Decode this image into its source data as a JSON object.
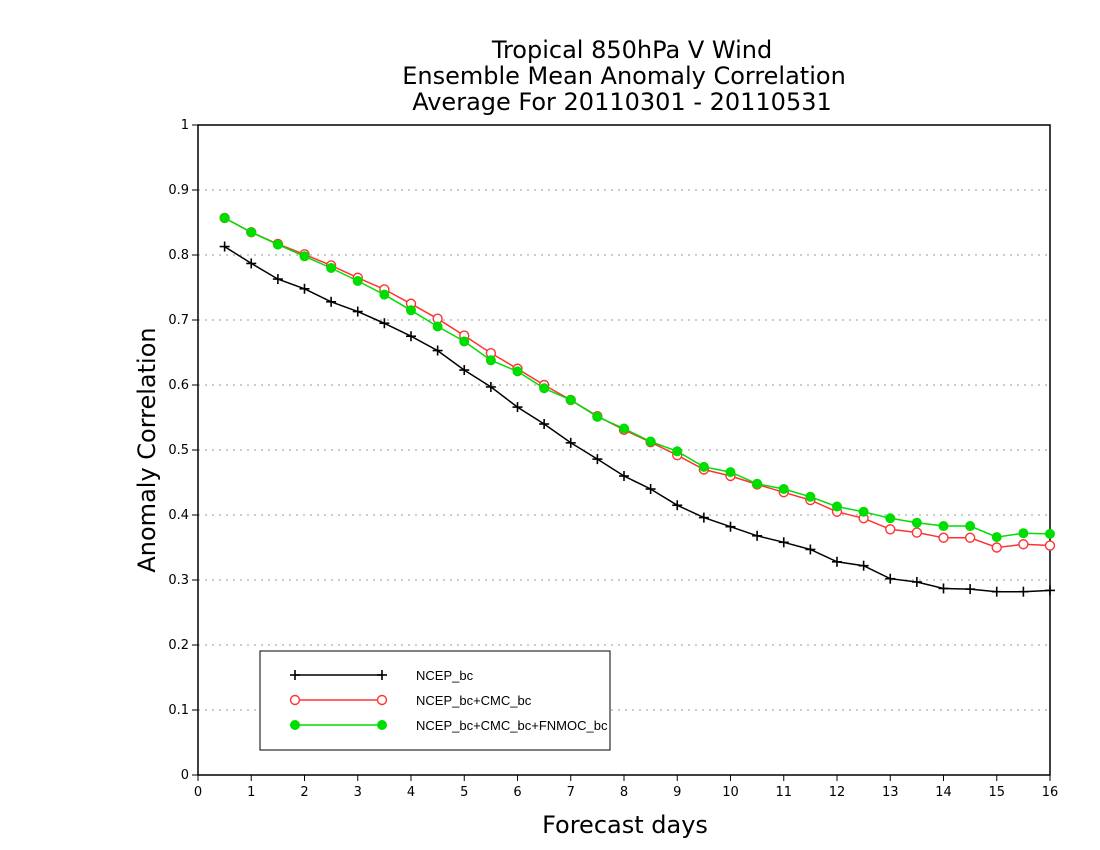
{
  "chart_data": {
    "type": "line",
    "title": [
      "Tropical 850hPa V Wind",
      "Ensemble Mean Anomaly Correlation",
      "Average For 20110301 - 20110531"
    ],
    "xlabel": "Forecast days",
    "ylabel": "Anomaly Correlation",
    "xlim": [
      0,
      16
    ],
    "ylim": [
      0,
      1
    ],
    "xticks": [
      0,
      1,
      2,
      3,
      4,
      5,
      6,
      7,
      8,
      9,
      10,
      11,
      12,
      13,
      14,
      15,
      16
    ],
    "yticks": [
      0,
      0.1,
      0.2,
      0.3,
      0.4,
      0.5,
      0.6,
      0.7,
      0.8,
      0.9,
      1
    ],
    "ytick_labels": [
      "0",
      "0.1",
      "0.2",
      "0.3",
      "0.4",
      "0.5",
      "0.6",
      "0.7",
      "0.8",
      "0.9",
      "1"
    ],
    "grid": true,
    "legend_position": "bottom-left",
    "x": [
      0.5,
      1,
      1.5,
      2,
      2.5,
      3,
      3.5,
      4,
      4.5,
      5,
      5.5,
      6,
      6.5,
      7,
      7.5,
      8,
      8.5,
      9,
      9.5,
      10,
      10.5,
      11,
      11.5,
      12,
      12.5,
      13,
      13.5,
      14,
      14.5,
      15,
      15.5,
      16
    ],
    "series": [
      {
        "name": "NCEP_bc",
        "color": "#000000",
        "marker": "plus",
        "values": [
          0.813,
          0.787,
          0.763,
          0.748,
          0.728,
          0.713,
          0.695,
          0.675,
          0.653,
          0.623,
          0.597,
          0.566,
          0.54,
          0.511,
          0.486,
          0.46,
          0.44,
          0.415,
          0.396,
          0.382,
          0.368,
          0.358,
          0.347,
          0.328,
          0.322,
          0.302,
          0.297,
          0.287,
          0.286,
          0.282,
          0.282,
          0.284
        ]
      },
      {
        "name": "NCEP_bc+CMC_bc",
        "color": "#ff3333",
        "marker": "open-circle",
        "values": [
          0.857,
          0.835,
          0.817,
          0.801,
          0.784,
          0.765,
          0.747,
          0.725,
          0.702,
          0.676,
          0.649,
          0.625,
          0.6,
          0.577,
          0.552,
          0.531,
          0.512,
          0.492,
          0.47,
          0.46,
          0.447,
          0.435,
          0.423,
          0.405,
          0.395,
          0.378,
          0.373,
          0.365,
          0.365,
          0.35,
          0.355,
          0.353
        ]
      },
      {
        "name": "NCEP_bc+CMC_bc+FNMOC_bc",
        "color": "#00dd00",
        "marker": "filled-circle",
        "values": [
          0.857,
          0.835,
          0.816,
          0.798,
          0.78,
          0.76,
          0.739,
          0.715,
          0.69,
          0.667,
          0.638,
          0.621,
          0.595,
          0.577,
          0.551,
          0.533,
          0.513,
          0.498,
          0.474,
          0.466,
          0.448,
          0.44,
          0.428,
          0.413,
          0.405,
          0.395,
          0.388,
          0.383,
          0.383,
          0.366,
          0.372,
          0.371
        ]
      }
    ]
  }
}
